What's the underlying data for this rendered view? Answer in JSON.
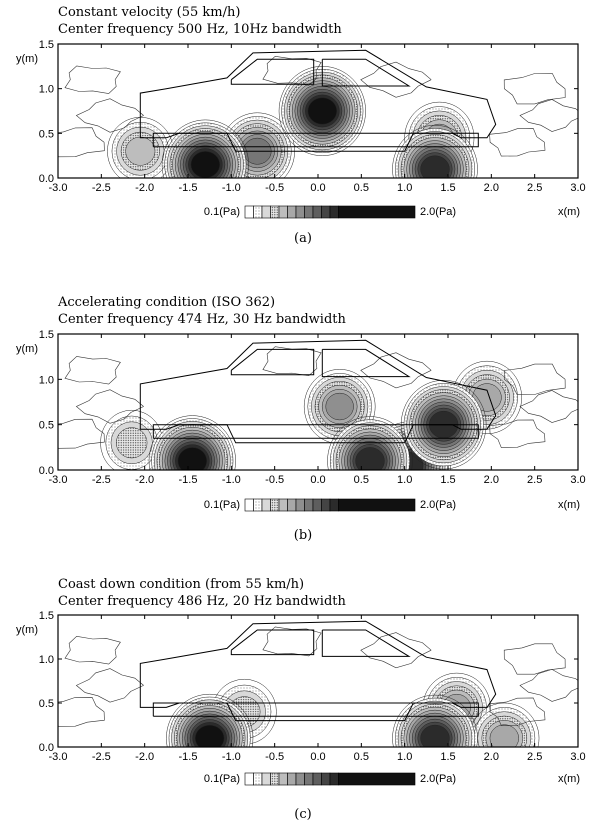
{
  "chart_data": [
    {
      "type": "heatmap",
      "title": "Constant velocity (55 km/h)",
      "subtitle": "Center frequency 500 Hz, 10Hz bandwidth",
      "xlabel": "x(m)",
      "ylabel": "y(m)",
      "xlim": [
        -3.0,
        3.0
      ],
      "ylim": [
        0.0,
        1.5
      ],
      "x_ticks": [
        "-3.0",
        "-2.5",
        "-2.0",
        "-1.5",
        "-1.0",
        "-0.5",
        "0.0",
        "0.5",
        "1.0",
        "1.5",
        "2.0",
        "2.5",
        "3.0"
      ],
      "y_ticks": [
        "0.0",
        "0.5",
        "1.0",
        "1.5"
      ],
      "colorbar": {
        "min_label": "0.1(Pa)",
        "max_label": "2.0(Pa)",
        "min": 0.1,
        "max": 2.0,
        "levels": 12
      },
      "caption": "(a)",
      "hotspots": [
        {
          "x": 0.05,
          "y": 0.75,
          "pressure": 2.0
        },
        {
          "x": -1.3,
          "y": 0.15,
          "pressure": 2.0
        },
        {
          "x": 1.35,
          "y": 0.1,
          "pressure": 1.9
        },
        {
          "x": -0.7,
          "y": 0.3,
          "pressure": 1.3
        },
        {
          "x": 1.4,
          "y": 0.45,
          "pressure": 1.0
        },
        {
          "x": -2.05,
          "y": 0.3,
          "pressure": 0.8
        }
      ]
    },
    {
      "type": "heatmap",
      "title": "Accelerating condition (ISO 362)",
      "subtitle": "Center frequency 474 Hz, 30 Hz bandwidth",
      "xlabel": "x(m)",
      "ylabel": "y(m)",
      "xlim": [
        -3.0,
        3.0
      ],
      "ylim": [
        0.0,
        1.5
      ],
      "x_ticks": [
        "-3.0",
        "-2.5",
        "-2.0",
        "-1.5",
        "-1.0",
        "-0.5",
        "0.0",
        "0.5",
        "1.0",
        "1.5",
        "2.0",
        "2.5",
        "3.0"
      ],
      "y_ticks": [
        "0.0",
        "0.5",
        "1.0",
        "1.5"
      ],
      "colorbar": {
        "min_label": "0.1(Pa)",
        "max_label": "2.0(Pa)",
        "min": 0.1,
        "max": 2.0,
        "levels": 12
      },
      "caption": "(b)",
      "hotspots": [
        {
          "x": -1.45,
          "y": 0.1,
          "pressure": 2.0
        },
        {
          "x": 0.6,
          "y": 0.1,
          "pressure": 1.9
        },
        {
          "x": 1.05,
          "y": 0.05,
          "pressure": 1.8
        },
        {
          "x": 1.45,
          "y": 0.5,
          "pressure": 1.9
        },
        {
          "x": 0.25,
          "y": 0.7,
          "pressure": 1.1
        },
        {
          "x": 1.95,
          "y": 0.8,
          "pressure": 1.0
        },
        {
          "x": -2.15,
          "y": 0.3,
          "pressure": 0.6
        }
      ]
    },
    {
      "type": "heatmap",
      "title": "Coast down condition (from 55 km/h)",
      "subtitle": "Center frequency 486 Hz, 20 Hz bandwidth",
      "xlabel": "x(m)",
      "ylabel": "y(m)",
      "xlim": [
        -3.0,
        3.0
      ],
      "ylim": [
        0.0,
        1.5
      ],
      "x_ticks": [
        "-3.0",
        "-2.5",
        "-2.0",
        "-1.5",
        "-1.0",
        "-0.5",
        "0.0",
        "0.5",
        "1.0",
        "1.5",
        "2.0",
        "2.5",
        "3.0"
      ],
      "y_ticks": [
        "0.0",
        "0.5",
        "1.0",
        "1.5"
      ],
      "colorbar": {
        "min_label": "0.1(Pa)",
        "max_label": "2.0(Pa)",
        "min": 0.1,
        "max": 2.0,
        "levels": 12
      },
      "caption": "(c)",
      "hotspots": [
        {
          "x": -1.25,
          "y": 0.1,
          "pressure": 2.0
        },
        {
          "x": 1.35,
          "y": 0.1,
          "pressure": 1.9
        },
        {
          "x": 2.15,
          "y": 0.1,
          "pressure": 1.0
        },
        {
          "x": 1.6,
          "y": 0.45,
          "pressure": 0.9
        },
        {
          "x": -0.85,
          "y": 0.4,
          "pressure": 0.7
        }
      ]
    }
  ]
}
